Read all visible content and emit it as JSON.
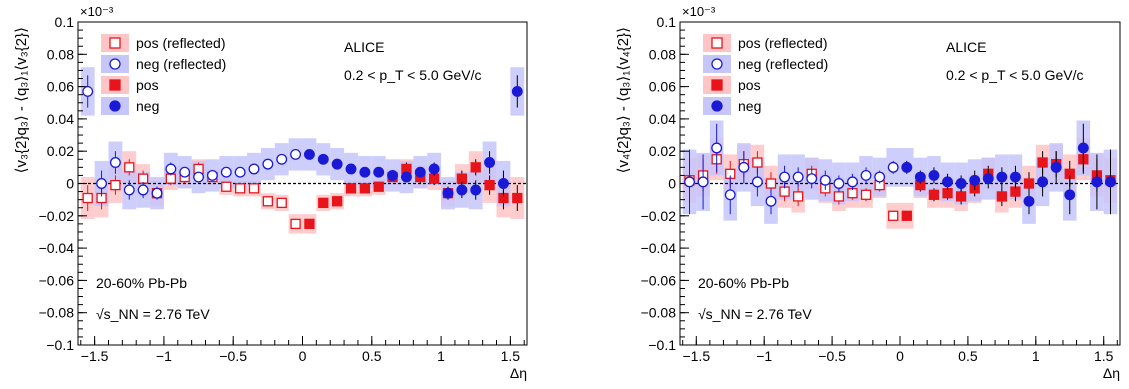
{
  "chart_data": [
    {
      "type": "scatter",
      "exponent_label": "×10⁻³",
      "xlabel": "Δη",
      "ylabel": "⟨v₃{2}q₃⟩ - ⟨q₃⟩₁⟨v₃{2}⟩",
      "xlim": [
        -1.62,
        1.62
      ],
      "ylim": [
        -0.1,
        0.1
      ],
      "x_ticks": [
        -1.5,
        -1,
        -0.5,
        0,
        0.5,
        1,
        1.5
      ],
      "x_tick_labels": [
        "−1.5",
        "−1",
        "−0.5",
        "0",
        "0.5",
        "1",
        "1.5"
      ],
      "y_ticks": [
        -0.1,
        -0.08,
        -0.06,
        -0.04,
        -0.02,
        0,
        0.02,
        0.04,
        0.06,
        0.08,
        0.1
      ],
      "y_tick_labels": [
        "−0.1",
        "−0.08",
        "−0.06",
        "−0.04",
        "−0.02",
        "0",
        "0.02",
        "0.04",
        "0.06",
        "0.08",
        "0.1"
      ],
      "annotations": {
        "experiment": "ALICE",
        "kinematic_range": "0.2 < p_T < 5.0 GeV/c",
        "centrality": "20-60% Pb-Pb",
        "energy": "√s_NN = 2.76 TeV"
      },
      "legend": [
        "pos (reflected)",
        "neg (reflected)",
        "pos",
        "neg"
      ],
      "legend_placement": "top-left",
      "series": [
        {
          "name": "pos",
          "x": [
            0.05,
            0.15,
            0.25,
            0.35,
            0.45,
            0.55,
            0.65,
            0.75,
            0.85,
            0.95,
            1.05,
            1.15,
            1.25,
            1.35,
            1.45,
            1.55
          ],
          "y": [
            -0.025,
            -0.012,
            -0.011,
            -0.003,
            -0.003,
            -0.002,
            0.004,
            0.009,
            0.004,
            0.003,
            -0.006,
            0.003,
            0.01,
            -0.001,
            -0.009,
            -0.009
          ],
          "err": [
            0.003,
            0.003,
            0.003,
            0.003,
            0.003,
            0.003,
            0.003,
            0.004,
            0.004,
            0.004,
            0.004,
            0.005,
            0.005,
            0.006,
            0.007,
            0.008
          ],
          "syst": [
            0.006,
            0.005,
            0.005,
            0.005,
            0.005,
            0.005,
            0.005,
            0.006,
            0.007,
            0.007,
            0.008,
            0.009,
            0.01,
            0.011,
            0.012,
            0.013
          ]
        },
        {
          "name": "neg",
          "x": [
            0.05,
            0.15,
            0.25,
            0.35,
            0.45,
            0.55,
            0.65,
            0.75,
            0.85,
            0.95,
            1.05,
            1.15,
            1.25,
            1.35,
            1.45,
            1.55
          ],
          "y": [
            0.018,
            0.015,
            0.012,
            0.009,
            0.007,
            0.007,
            0.005,
            0.004,
            0.007,
            0.009,
            -0.006,
            -0.004,
            -0.004,
            0.013,
            0.0,
            0.057
          ],
          "err": [
            0.002,
            0.002,
            0.002,
            0.002,
            0.002,
            0.002,
            0.003,
            0.003,
            0.003,
            0.004,
            0.004,
            0.005,
            0.006,
            0.007,
            0.008,
            0.01
          ],
          "syst": [
            0.01,
            0.01,
            0.01,
            0.01,
            0.01,
            0.01,
            0.01,
            0.01,
            0.01,
            0.01,
            0.01,
            0.011,
            0.012,
            0.013,
            0.014,
            0.015
          ]
        }
      ]
    },
    {
      "type": "scatter",
      "exponent_label": "×10⁻³",
      "xlabel": "Δη",
      "ylabel": "⟨v₄{2}q₃⟩ - ⟨q₃⟩₁⟨v₄{2}⟩",
      "xlim": [
        -1.62,
        1.62
      ],
      "ylim": [
        -0.1,
        0.1
      ],
      "x_ticks": [
        -1.5,
        -1,
        -0.5,
        0,
        0.5,
        1,
        1.5
      ],
      "x_tick_labels": [
        "−1.5",
        "−1",
        "−0.5",
        "0",
        "0.5",
        "1",
        "1.5"
      ],
      "y_ticks": [
        -0.1,
        -0.08,
        -0.06,
        -0.04,
        -0.02,
        0,
        0.02,
        0.04,
        0.06,
        0.08,
        0.1
      ],
      "y_tick_labels": [
        "−0.1",
        "−0.08",
        "−0.06",
        "−0.04",
        "−0.02",
        "0",
        "0.02",
        "0.04",
        "0.06",
        "0.08",
        "0.1"
      ],
      "annotations": {
        "experiment": "ALICE",
        "kinematic_range": "0.2 < p_T < 5.0 GeV/c",
        "centrality": "20-60% Pb-Pb",
        "energy": "√s_NN = 2.76 TeV"
      },
      "legend": [
        "pos (reflected)",
        "neg (reflected)",
        "pos",
        "neg"
      ],
      "legend_placement": "top-left",
      "series": [
        {
          "name": "pos",
          "x": [
            0.05,
            0.15,
            0.25,
            0.35,
            0.45,
            0.55,
            0.65,
            0.75,
            0.85,
            0.95,
            1.05,
            1.15,
            1.25,
            1.35,
            1.45,
            1.55
          ],
          "y": [
            -0.02,
            -0.001,
            -0.007,
            -0.006,
            -0.008,
            -0.003,
            0.006,
            -0.008,
            -0.005,
            0.0,
            0.013,
            0.012,
            0.006,
            0.015,
            0.005,
            0.002
          ],
          "err": [
            0.003,
            0.004,
            0.004,
            0.004,
            0.005,
            0.005,
            0.005,
            0.006,
            0.006,
            0.007,
            0.007,
            0.008,
            0.008,
            0.009,
            0.01,
            0.012
          ],
          "syst": [
            0.008,
            0.008,
            0.008,
            0.009,
            0.009,
            0.009,
            0.01,
            0.01,
            0.01,
            0.011,
            0.011,
            0.012,
            0.012,
            0.013,
            0.013,
            0.014
          ]
        },
        {
          "name": "neg",
          "x": [
            0.05,
            0.15,
            0.25,
            0.35,
            0.45,
            0.55,
            0.65,
            0.75,
            0.85,
            0.95,
            1.05,
            1.15,
            1.25,
            1.35,
            1.45,
            1.55
          ],
          "y": [
            0.01,
            0.004,
            0.005,
            0.001,
            0.0,
            0.002,
            0.003,
            0.004,
            0.004,
            -0.011,
            0.001,
            0.01,
            -0.007,
            0.022,
            0.001,
            0.001
          ],
          "err": [
            0.004,
            0.004,
            0.005,
            0.005,
            0.005,
            0.006,
            0.006,
            0.006,
            0.007,
            0.008,
            0.009,
            0.01,
            0.012,
            0.015,
            0.017,
            0.02
          ],
          "syst": [
            0.012,
            0.012,
            0.012,
            0.012,
            0.013,
            0.013,
            0.013,
            0.014,
            0.014,
            0.014,
            0.015,
            0.015,
            0.016,
            0.017,
            0.018,
            0.02
          ]
        }
      ]
    }
  ]
}
